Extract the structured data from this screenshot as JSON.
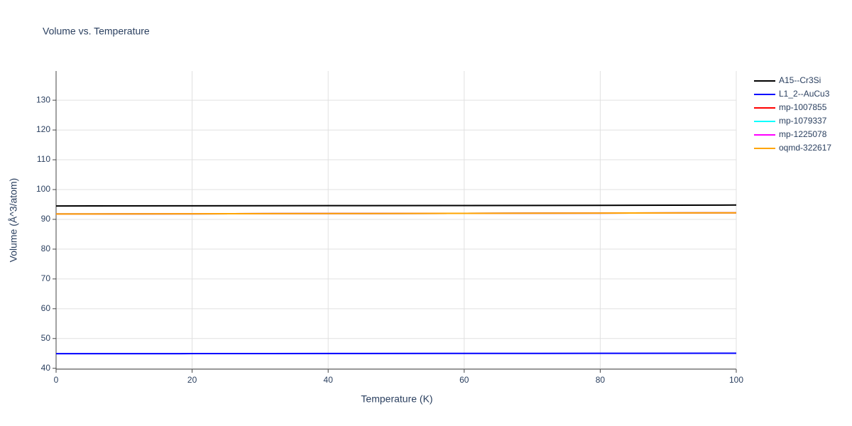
{
  "chart_data": {
    "type": "line",
    "title": "Volume vs. Temperature",
    "x_label": "Temperature (K)",
    "y_label": "Volume (Å^3/atom)",
    "x": [
      0,
      20,
      40,
      60,
      80,
      100
    ],
    "series": [
      {
        "name": "A15--Cr3Si",
        "color": "#000000",
        "values": [
          94.5,
          94.55,
          94.6,
          94.65,
          94.7,
          94.8
        ]
      },
      {
        "name": "L1_2--AuCu3",
        "color": "#0000ff",
        "values": [
          44.9,
          44.93,
          44.96,
          45.0,
          45.03,
          45.07
        ]
      },
      {
        "name": "mp-1007855",
        "color": "#ff0000",
        "values": [
          91.8,
          91.87,
          91.95,
          92.02,
          92.1,
          92.2
        ]
      },
      {
        "name": "mp-1079337",
        "color": "#00ffff",
        "values": [
          91.8,
          91.87,
          91.95,
          92.02,
          92.1,
          92.2
        ]
      },
      {
        "name": "mp-1225078",
        "color": "#ff00ff",
        "values": [
          91.8,
          91.87,
          91.95,
          92.02,
          92.1,
          92.2
        ]
      },
      {
        "name": "oqmd-322617",
        "color": "#ffa500",
        "values": [
          91.8,
          91.87,
          91.95,
          92.02,
          92.1,
          92.2
        ]
      }
    ],
    "xlim": [
      0,
      100
    ],
    "xticks": [
      0,
      20,
      40,
      60,
      80,
      100
    ],
    "ylim": [
      39.7,
      139.8
    ],
    "yticks": [
      40,
      50,
      60,
      70,
      80,
      90,
      100,
      110,
      120,
      130
    ],
    "grid": true,
    "legend": "outside-right"
  }
}
